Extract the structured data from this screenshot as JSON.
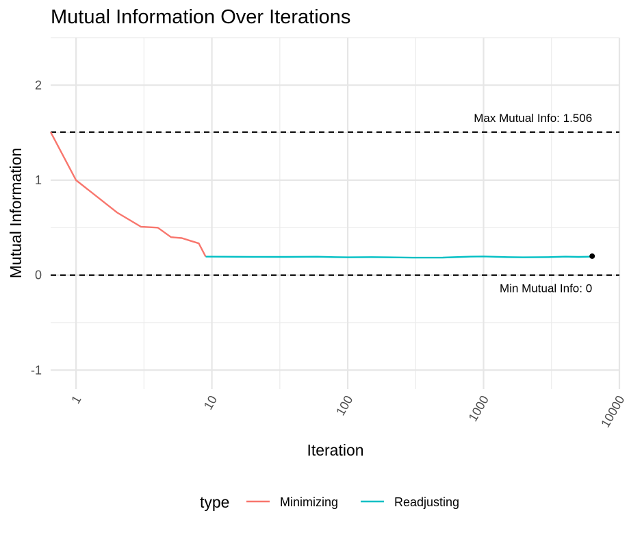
{
  "chart_data": {
    "type": "line",
    "title": "Mutual Information Over Iterations",
    "xlabel": "Iteration",
    "ylabel": "Mutual Information",
    "x_scale": "log10",
    "xlim": [
      0.65,
      10000
    ],
    "ylim": [
      -1.2,
      2.5
    ],
    "x_ticks": [
      1,
      10,
      100,
      1000,
      10000
    ],
    "x_tick_labels": [
      "1",
      "10",
      "100",
      "1000",
      "10000"
    ],
    "y_ticks": [
      -1,
      0,
      1,
      2
    ],
    "y_tick_labels": [
      "-1",
      "0",
      "1",
      "2"
    ],
    "grid": true,
    "legend": {
      "title": "type",
      "position": "bottom",
      "entries": [
        {
          "label": "Minimizing",
          "color": "#F8766D"
        },
        {
          "label": "Readjusting",
          "color": "#00BFC4"
        }
      ]
    },
    "series": [
      {
        "name": "Minimizing",
        "color": "#F8766D",
        "x": [
          0.65,
          1,
          2,
          3,
          4,
          5,
          6,
          7,
          8,
          9
        ],
        "y": [
          1.506,
          1.0,
          0.66,
          0.51,
          0.5,
          0.4,
          0.39,
          0.36,
          0.335,
          0.195
        ]
      },
      {
        "name": "Readjusting",
        "color": "#00BFC4",
        "x": [
          9,
          12,
          20,
          35,
          60,
          80,
          100,
          150,
          200,
          300,
          500,
          800,
          1000,
          1500,
          2000,
          3000,
          4000,
          5000,
          6300
        ],
        "y": [
          0.195,
          0.194,
          0.193,
          0.192,
          0.194,
          0.19,
          0.188,
          0.19,
          0.188,
          0.184,
          0.185,
          0.195,
          0.197,
          0.19,
          0.188,
          0.19,
          0.195,
          0.192,
          0.195
        ]
      }
    ],
    "endpoint": {
      "x": 6300,
      "y": 0.2,
      "color": "#000000"
    },
    "reference_lines": [
      {
        "y": 1.506,
        "label": "Max Mutual Info: 1.506",
        "style": "dashed"
      },
      {
        "y": 0,
        "label": "Min Mutual Info: 0",
        "style": "dashed"
      }
    ]
  }
}
